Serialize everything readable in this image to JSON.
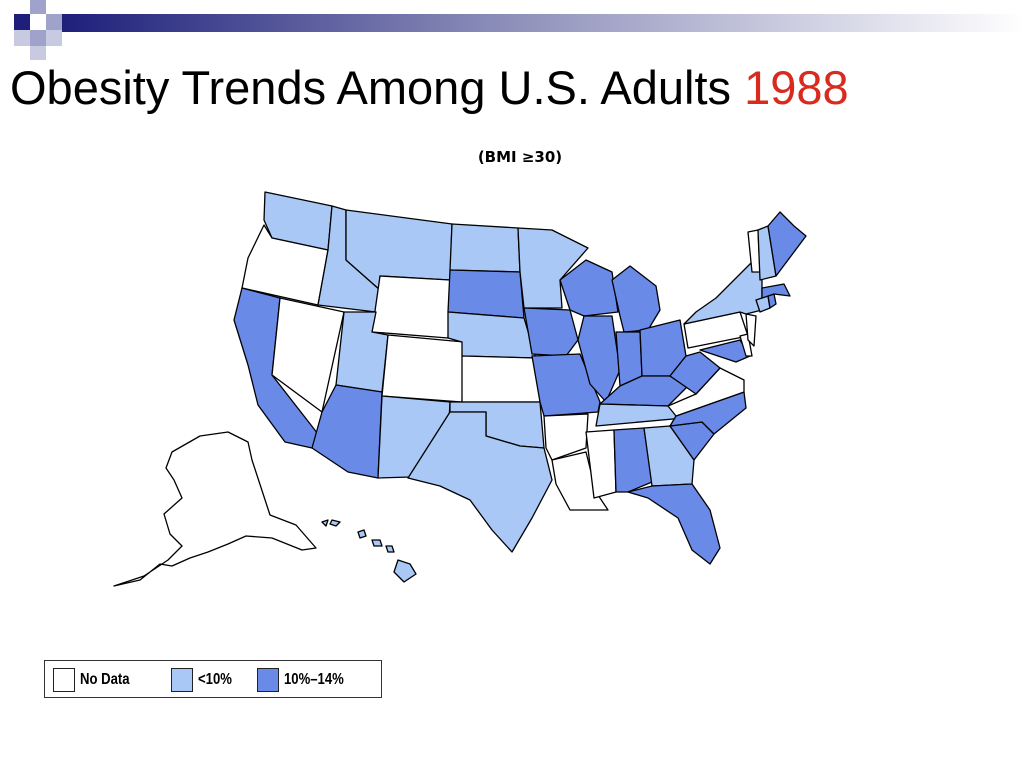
{
  "slide": {
    "title_text": "Obesity Trends Among U.S. Adults",
    "title_year": "1988",
    "subtitle": "(BMI ≥30)"
  },
  "colors": {
    "no_data": "#ffffff",
    "under_10": "#a9c8f6",
    "ten_to_14": "#6a8ae8",
    "title_year": "#d92a1e",
    "banner_dark": "#1d1f7a"
  },
  "legend": {
    "items": [
      {
        "label": "No Data",
        "color": "#ffffff"
      },
      {
        "label": "<10%",
        "color": "#a9c8f6"
      },
      {
        "label": "10%–14%",
        "color": "#6a8ae8"
      }
    ]
  },
  "map_categories": {
    "no_data": [
      "OR",
      "NV",
      "WY",
      "CO",
      "KS",
      "AR",
      "LA",
      "MS",
      "VA",
      "PA",
      "NJ",
      "DE",
      "VT",
      "AK"
    ],
    "under_10": [
      "WA",
      "ID",
      "MT",
      "ND",
      "MN",
      "UT",
      "NM",
      "NE",
      "OK",
      "TX",
      "TN",
      "GA",
      "NY",
      "NH",
      "CT",
      "HI"
    ],
    "ten_to_14": [
      "CA",
      "AZ",
      "SD",
      "IA",
      "MO",
      "WI",
      "IL",
      "IN",
      "MI",
      "OH",
      "KY",
      "WV",
      "MD",
      "NC",
      "SC",
      "AL",
      "FL",
      "ME",
      "MA",
      "RI"
    ]
  }
}
